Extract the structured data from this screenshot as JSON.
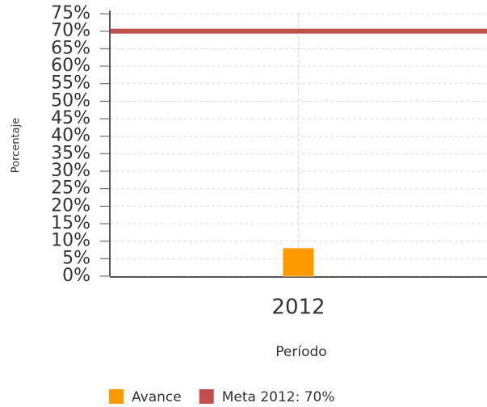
{
  "chart_data": {
    "type": "bar",
    "y_label": "Porcentaje",
    "x_label": "Período",
    "categories": [
      "2012"
    ],
    "series": [
      {
        "name": "Avance",
        "color": "#ff9900",
        "values": [
          8
        ]
      },
      {
        "name": "Meta 2012: 70%",
        "color": "#c0504d",
        "type": "line",
        "values": [
          70
        ]
      }
    ],
    "ylim": [
      0,
      75
    ],
    "yticks": [
      {
        "value": 0,
        "label": "0%"
      },
      {
        "value": 5,
        "label": "5%"
      },
      {
        "value": 10,
        "label": "10%"
      },
      {
        "value": 15,
        "label": "15%"
      },
      {
        "value": 20,
        "label": "20%"
      },
      {
        "value": 25,
        "label": "25%"
      },
      {
        "value": 30,
        "label": "30%"
      },
      {
        "value": 35,
        "label": "35%"
      },
      {
        "value": 40,
        "label": "40%"
      },
      {
        "value": 45,
        "label": "45%"
      },
      {
        "value": 50,
        "label": "50%"
      },
      {
        "value": 55,
        "label": "55%"
      },
      {
        "value": 60,
        "label": "60%"
      },
      {
        "value": 65,
        "label": "65%"
      },
      {
        "value": 70,
        "label": "70%"
      },
      {
        "value": 75,
        "label": "75%"
      }
    ],
    "grid": true,
    "legend": "bottom"
  }
}
